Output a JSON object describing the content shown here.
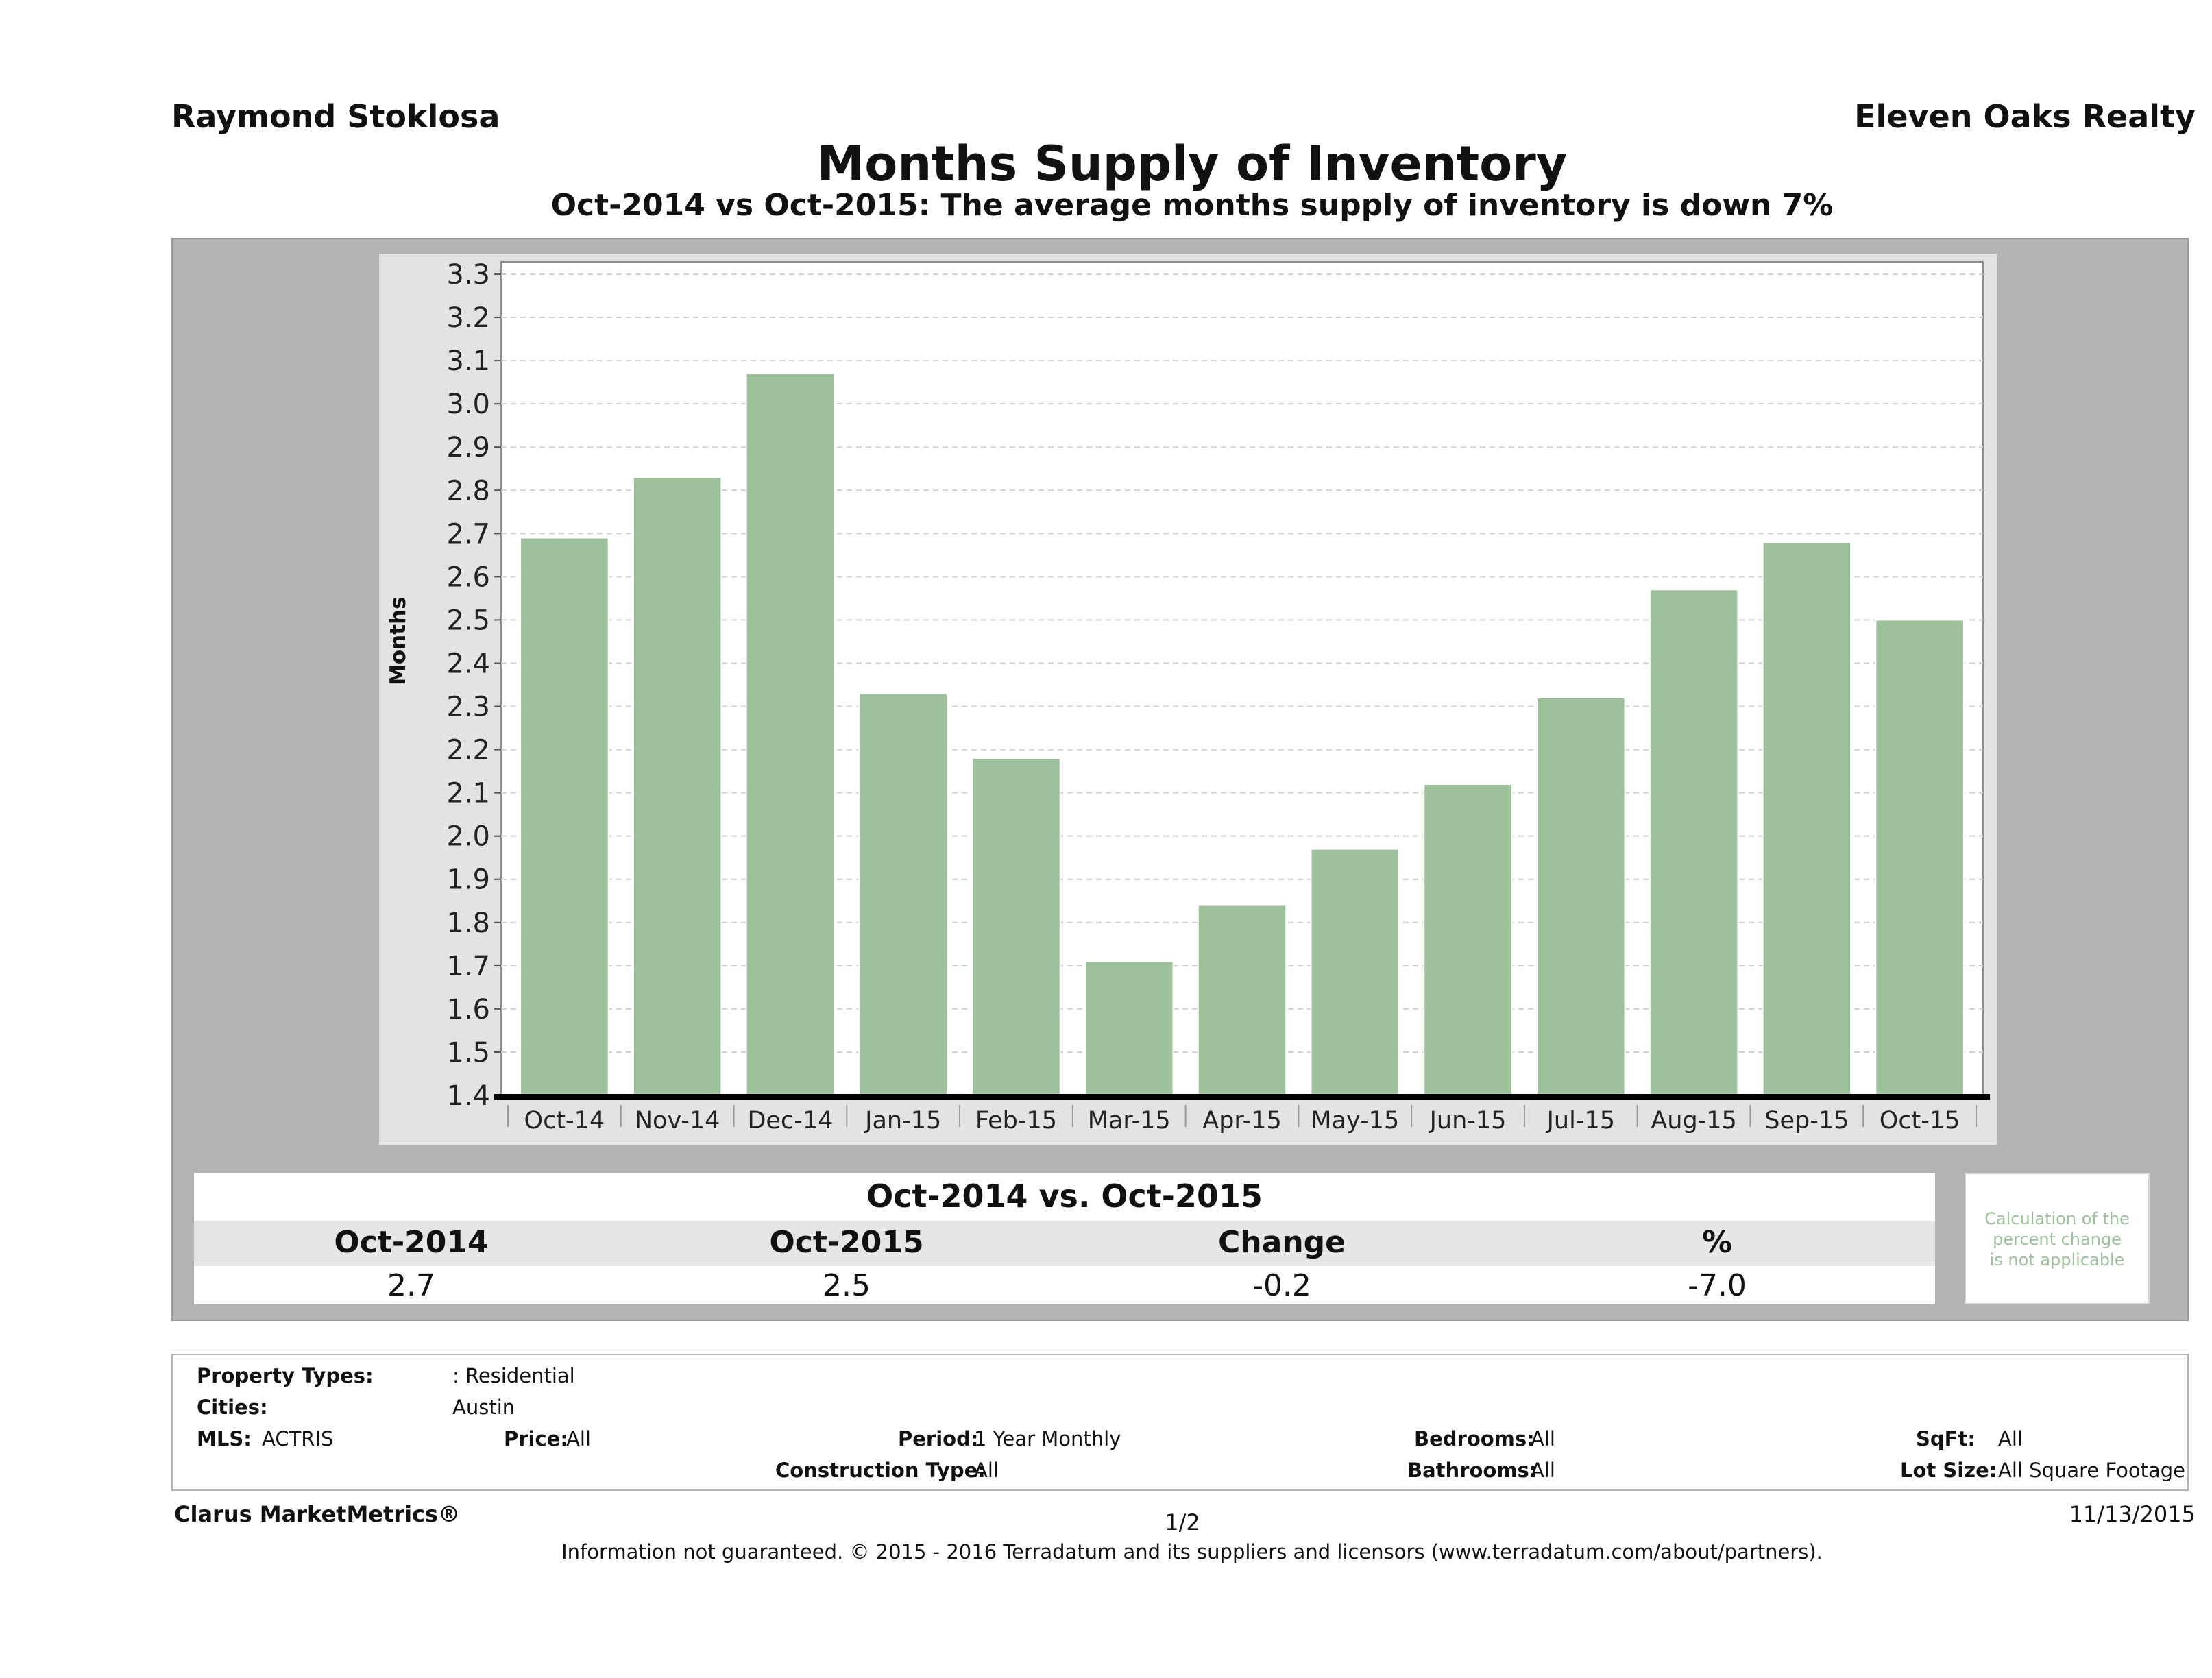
{
  "header": {
    "agent": "Raymond Stoklosa",
    "brokerage": "Eleven Oaks Realty"
  },
  "chart_data": {
    "type": "bar",
    "title": "Months Supply of Inventory",
    "subtitle": "Oct-2014 vs Oct-2015: The average months supply of inventory is down 7%",
    "xlabel": "",
    "ylabel": "Months",
    "ylim": [
      1.4,
      3.3
    ],
    "yticks": [
      "1.4",
      "1.5",
      "1.6",
      "1.7",
      "1.8",
      "1.9",
      "2.0",
      "2.1",
      "2.2",
      "2.3",
      "2.4",
      "2.5",
      "2.6",
      "2.7",
      "2.8",
      "2.9",
      "3.0",
      "3.1",
      "3.2",
      "3.3"
    ],
    "grid": true,
    "categories": [
      "Oct-14",
      "Nov-14",
      "Dec-14",
      "Jan-15",
      "Feb-15",
      "Mar-15",
      "Apr-15",
      "May-15",
      "Jun-15",
      "Jul-15",
      "Aug-15",
      "Sep-15",
      "Oct-15"
    ],
    "values": [
      2.69,
      2.83,
      3.07,
      2.33,
      2.18,
      1.71,
      1.84,
      1.97,
      2.12,
      2.32,
      2.57,
      2.68,
      2.5
    ],
    "bar_color": "#9dc19a"
  },
  "comparison": {
    "title": "Oct-2014 vs. Oct-2015",
    "headers": [
      "Oct-2014",
      "Oct-2015",
      "Change",
      "%"
    ],
    "values": [
      "2.7",
      "2.5",
      "-0.2",
      "-7.0"
    ],
    "note": [
      "Calculation of the",
      "percent change",
      "is not applicable"
    ]
  },
  "filters": {
    "property_types_label": "Property Types:",
    "property_types_value": ": Residential",
    "cities_label": "Cities:",
    "cities_value": "Austin",
    "mls_label": "MLS:",
    "mls_value": "ACTRIS",
    "price_label": "Price:",
    "price_value": "All",
    "period_label": "Period:",
    "period_value": "1 Year Monthly",
    "construction_label": "Construction Type:",
    "construction_value": "All",
    "bedrooms_label": "Bedrooms:",
    "bedrooms_value": "All",
    "bathrooms_label": "Bathrooms:",
    "bathrooms_value": "All",
    "sqft_label": "SqFt:",
    "sqft_value": "All",
    "lot_label": "Lot Size:",
    "lot_value": "All Square Footage"
  },
  "footer": {
    "product": "Clarus MarketMetrics®",
    "page": "1/2",
    "date": "11/13/2015",
    "disclaimer": "Information not guaranteed. © 2015 - 2016 Terradatum and its suppliers and licensors (www.terradatum.com/about/partners)."
  }
}
